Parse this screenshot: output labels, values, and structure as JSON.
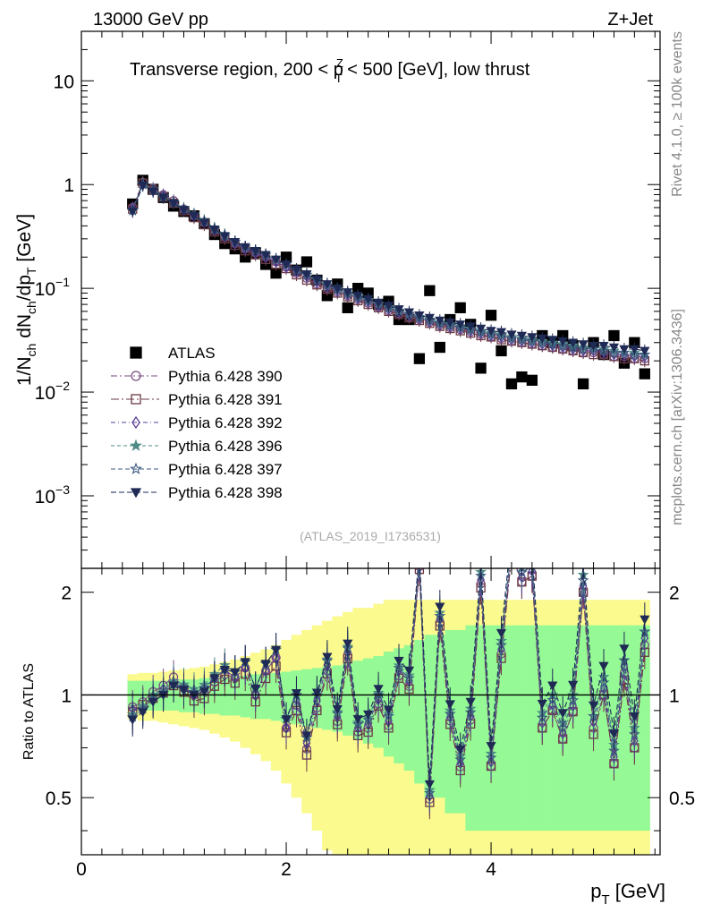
{
  "header": {
    "left": "13000 GeV pp",
    "right": "Z+Jet"
  },
  "side_labels": {
    "rivet": "Rivet 4.1.0, ≥ 100k events",
    "mcplots": "mcplots.cern.ch [arXiv:1306.3436]"
  },
  "chart_data": [
    {
      "type": "scatter",
      "panel": "main",
      "title": "Transverse region, 200 < p_T^Z < 500 [GeV], low thrust",
      "title_parts": {
        "a": "Transverse region, 200 < p",
        "sup": "Z",
        "sub": "T",
        "b": " < 500 [GeV], low thrust"
      },
      "ylabel": "1/N_ch dN_ch/dp_T [GeV]",
      "ylabel_parts": {
        "a": "1/N",
        "s1": "ch",
        "b": " dN",
        "s2": "ch",
        "c": "/dp",
        "s3": "T",
        "d": " [GeV]"
      },
      "xlim": [
        0,
        5.65
      ],
      "ylim": [
        0.0002,
        30
      ],
      "yscale": "log",
      "ytick_labels": [
        {
          "value": 0.001,
          "base": "10",
          "exp": "−3"
        },
        {
          "value": 0.01,
          "base": "10",
          "exp": "−2"
        },
        {
          "value": 0.1,
          "base": "10",
          "exp": "−1"
        },
        {
          "value": 1,
          "base": "1",
          "exp": ""
        },
        {
          "value": 10,
          "base": "10",
          "exp": ""
        }
      ],
      "watermark": "(ATLAS_2019_I1736531)",
      "legend_title": "ATLAS",
      "series": [
        {
          "name": "ATLAS",
          "marker": "filled-square",
          "color": "#000000",
          "x": [
            0.5,
            0.6,
            0.7,
            0.8,
            0.9,
            1.0,
            1.1,
            1.2,
            1.3,
            1.4,
            1.5,
            1.6,
            1.7,
            1.8,
            1.9,
            2.0,
            2.1,
            2.2,
            2.3,
            2.4,
            2.5,
            2.6,
            2.7,
            2.8,
            2.9,
            3.0,
            3.1,
            3.2,
            3.3,
            3.4,
            3.5,
            3.6,
            3.7,
            3.8,
            3.9,
            4.0,
            4.1,
            4.2,
            4.3,
            4.4,
            4.5,
            4.6,
            4.7,
            4.8,
            4.9,
            5.0,
            5.1,
            5.2,
            5.3,
            5.4,
            5.5
          ],
          "y": [
            0.65,
            1.1,
            0.9,
            0.75,
            0.62,
            0.55,
            0.5,
            0.42,
            0.33,
            0.27,
            0.24,
            0.2,
            0.22,
            0.17,
            0.14,
            0.2,
            0.15,
            0.18,
            0.12,
            0.085,
            0.11,
            0.065,
            0.1,
            0.09,
            0.07,
            0.075,
            0.05,
            0.05,
            0.021,
            0.095,
            0.027,
            0.05,
            0.065,
            0.045,
            0.017,
            0.055,
            0.025,
            0.012,
            0.014,
            0.013,
            0.035,
            0.03,
            0.035,
            0.028,
            0.012,
            0.03,
            0.023,
            0.035,
            0.019,
            0.03,
            0.015
          ]
        },
        {
          "name": "Pythia 6.428 390",
          "marker": "open-circle",
          "color": "#7B4B84",
          "dash": "7,3,2,3",
          "x": [
            0.5,
            0.6,
            0.7,
            0.8,
            0.9,
            1.0,
            1.1,
            1.2,
            1.3,
            1.4,
            1.5,
            1.6,
            1.7,
            1.8,
            1.9,
            2.0,
            2.1,
            2.2,
            2.3,
            2.4,
            2.5,
            2.6,
            2.7,
            2.8,
            2.9,
            3.0,
            3.1,
            3.2,
            3.3,
            3.4,
            3.5,
            3.6,
            3.7,
            3.8,
            3.9,
            4.0,
            4.1,
            4.2,
            4.3,
            4.4,
            4.5,
            4.6,
            4.7,
            4.8,
            4.9,
            5.0,
            5.1,
            5.2,
            5.3,
            5.4,
            5.5
          ],
          "y": [
            0.6,
            1.05,
            0.92,
            0.8,
            0.7,
            0.58,
            0.5,
            0.43,
            0.36,
            0.31,
            0.27,
            0.24,
            0.22,
            0.2,
            0.18,
            0.16,
            0.14,
            0.125,
            0.11,
            0.1,
            0.092,
            0.085,
            0.078,
            0.072,
            0.066,
            0.061,
            0.057,
            0.053,
            0.05,
            0.047,
            0.044,
            0.042,
            0.04,
            0.038,
            0.036,
            0.034,
            0.033,
            0.031,
            0.03,
            0.029,
            0.028,
            0.027,
            0.026,
            0.025,
            0.024,
            0.024,
            0.023,
            0.022,
            0.022,
            0.021,
            0.021
          ]
        },
        {
          "name": "Pythia 6.428 391",
          "marker": "open-square",
          "color": "#6B3A45",
          "dash": "9,3,2,3",
          "x": [
            0.5,
            0.6,
            0.7,
            0.8,
            0.9,
            1.0,
            1.1,
            1.2,
            1.3,
            1.4,
            1.5,
            1.6,
            1.7,
            1.8,
            1.9,
            2.0,
            2.1,
            2.2,
            2.3,
            2.4,
            2.5,
            2.6,
            2.7,
            2.8,
            2.9,
            3.0,
            3.1,
            3.2,
            3.3,
            3.4,
            3.5,
            3.6,
            3.7,
            3.8,
            3.9,
            4.0,
            4.1,
            4.2,
            4.3,
            4.4,
            4.5,
            4.6,
            4.7,
            4.8,
            4.9,
            5.0,
            5.1,
            5.2,
            5.3,
            5.4,
            5.5
          ],
          "y": [
            0.58,
            1.03,
            0.88,
            0.76,
            0.66,
            0.56,
            0.48,
            0.41,
            0.35,
            0.3,
            0.26,
            0.23,
            0.21,
            0.19,
            0.17,
            0.155,
            0.135,
            0.12,
            0.108,
            0.098,
            0.09,
            0.083,
            0.076,
            0.07,
            0.065,
            0.06,
            0.056,
            0.052,
            0.049,
            0.046,
            0.043,
            0.041,
            0.039,
            0.037,
            0.035,
            0.034,
            0.032,
            0.031,
            0.03,
            0.029,
            0.028,
            0.027,
            0.026,
            0.025,
            0.024,
            0.023,
            0.023,
            0.022,
            0.021,
            0.021,
            0.02
          ]
        },
        {
          "name": "Pythia 6.428 392",
          "marker": "open-diamond",
          "color": "#5A3C9A",
          "dash": "5,3,1,3",
          "x": [
            0.5,
            0.6,
            0.7,
            0.8,
            0.9,
            1.0,
            1.1,
            1.2,
            1.3,
            1.4,
            1.5,
            1.6,
            1.7,
            1.8,
            1.9,
            2.0,
            2.1,
            2.2,
            2.3,
            2.4,
            2.5,
            2.6,
            2.7,
            2.8,
            2.9,
            3.0,
            3.1,
            3.2,
            3.3,
            3.4,
            3.5,
            3.6,
            3.7,
            3.8,
            3.9,
            4.0,
            4.1,
            4.2,
            4.3,
            4.4,
            4.5,
            4.6,
            4.7,
            4.8,
            4.9,
            5.0,
            5.1,
            5.2,
            5.3,
            5.4,
            5.5
          ],
          "y": [
            0.59,
            1.0,
            0.87,
            0.78,
            0.67,
            0.57,
            0.5,
            0.44,
            0.37,
            0.32,
            0.27,
            0.24,
            0.22,
            0.2,
            0.18,
            0.16,
            0.145,
            0.13,
            0.115,
            0.104,
            0.095,
            0.087,
            0.08,
            0.074,
            0.068,
            0.063,
            0.059,
            0.055,
            0.051,
            0.048,
            0.045,
            0.043,
            0.041,
            0.039,
            0.037,
            0.035,
            0.034,
            0.032,
            0.031,
            0.03,
            0.029,
            0.028,
            0.027,
            0.026,
            0.025,
            0.025,
            0.024,
            0.023,
            0.023,
            0.022,
            0.022
          ]
        },
        {
          "name": "Pythia 6.428 396",
          "marker": "filled-star",
          "color": "#4E8A86",
          "dash": "4,3",
          "x": [
            0.5,
            0.6,
            0.7,
            0.8,
            0.9,
            1.0,
            1.1,
            1.2,
            1.3,
            1.4,
            1.5,
            1.6,
            1.7,
            1.8,
            1.9,
            2.0,
            2.1,
            2.2,
            2.3,
            2.4,
            2.5,
            2.6,
            2.7,
            2.8,
            2.9,
            3.0,
            3.1,
            3.2,
            3.3,
            3.4,
            3.5,
            3.6,
            3.7,
            3.8,
            3.9,
            4.0,
            4.1,
            4.2,
            4.3,
            4.4,
            4.5,
            4.6,
            4.7,
            4.8,
            4.9,
            5.0,
            5.1,
            5.2,
            5.3,
            5.4,
            5.5
          ],
          "y": [
            0.57,
            1.02,
            0.9,
            0.77,
            0.68,
            0.59,
            0.52,
            0.45,
            0.38,
            0.33,
            0.28,
            0.25,
            0.23,
            0.21,
            0.19,
            0.17,
            0.15,
            0.135,
            0.12,
            0.108,
            0.098,
            0.09,
            0.083,
            0.077,
            0.071,
            0.066,
            0.061,
            0.057,
            0.053,
            0.05,
            0.047,
            0.045,
            0.043,
            0.041,
            0.039,
            0.037,
            0.036,
            0.034,
            0.033,
            0.032,
            0.031,
            0.03,
            0.029,
            0.028,
            0.027,
            0.026,
            0.026,
            0.025,
            0.024,
            0.024,
            0.023
          ]
        },
        {
          "name": "Pythia 6.428 397",
          "marker": "open-star",
          "color": "#3D5A80",
          "dash": "5,3",
          "x": [
            0.5,
            0.6,
            0.7,
            0.8,
            0.9,
            1.0,
            1.1,
            1.2,
            1.3,
            1.4,
            1.5,
            1.6,
            1.7,
            1.8,
            1.9,
            2.0,
            2.1,
            2.2,
            2.3,
            2.4,
            2.5,
            2.6,
            2.7,
            2.8,
            2.9,
            3.0,
            3.1,
            3.2,
            3.3,
            3.4,
            3.5,
            3.6,
            3.7,
            3.8,
            3.9,
            4.0,
            4.1,
            4.2,
            4.3,
            4.4,
            4.5,
            4.6,
            4.7,
            4.8,
            4.9,
            5.0,
            5.1,
            5.2,
            5.3,
            5.4,
            5.5
          ],
          "y": [
            0.56,
            1.0,
            0.89,
            0.76,
            0.67,
            0.58,
            0.51,
            0.44,
            0.37,
            0.32,
            0.28,
            0.25,
            0.23,
            0.21,
            0.19,
            0.17,
            0.15,
            0.135,
            0.12,
            0.107,
            0.097,
            0.089,
            0.082,
            0.076,
            0.07,
            0.065,
            0.06,
            0.056,
            0.052,
            0.049,
            0.046,
            0.044,
            0.042,
            0.04,
            0.038,
            0.036,
            0.035,
            0.033,
            0.032,
            0.031,
            0.03,
            0.029,
            0.028,
            0.027,
            0.026,
            0.026,
            0.025,
            0.024,
            0.024,
            0.023,
            0.023
          ]
        },
        {
          "name": "Pythia 6.428 398",
          "marker": "filled-triangle-down",
          "color": "#1F2A55",
          "dash": "6,3",
          "x": [
            0.5,
            0.6,
            0.7,
            0.8,
            0.9,
            1.0,
            1.1,
            1.2,
            1.3,
            1.4,
            1.5,
            1.6,
            1.7,
            1.8,
            1.9,
            2.0,
            2.1,
            2.2,
            2.3,
            2.4,
            2.5,
            2.6,
            2.7,
            2.8,
            2.9,
            3.0,
            3.1,
            3.2,
            3.3,
            3.4,
            3.5,
            3.6,
            3.7,
            3.8,
            3.9,
            4.0,
            4.1,
            4.2,
            4.3,
            4.4,
            4.5,
            4.6,
            4.7,
            4.8,
            4.9,
            5.0,
            5.1,
            5.2,
            5.3,
            5.4,
            5.5
          ],
          "y": [
            0.55,
            0.98,
            0.86,
            0.75,
            0.66,
            0.57,
            0.5,
            0.43,
            0.37,
            0.32,
            0.28,
            0.25,
            0.23,
            0.21,
            0.19,
            0.17,
            0.152,
            0.137,
            0.122,
            0.11,
            0.1,
            0.092,
            0.085,
            0.079,
            0.073,
            0.068,
            0.063,
            0.059,
            0.055,
            0.052,
            0.049,
            0.047,
            0.045,
            0.043,
            0.041,
            0.039,
            0.038,
            0.036,
            0.035,
            0.034,
            0.033,
            0.032,
            0.031,
            0.03,
            0.029,
            0.028,
            0.028,
            0.027,
            0.026,
            0.026,
            0.025
          ]
        }
      ]
    },
    {
      "type": "scatter",
      "panel": "ratio",
      "ylabel": "Ratio to ATLAS",
      "xlabel": "p_T [GeV]",
      "xlabel_parts": {
        "a": "p",
        "sub": "T",
        "b": " [GeV]"
      },
      "xlim": [
        0,
        5.65
      ],
      "ylim": [
        0.34,
        2.35
      ],
      "yscale": "log",
      "xticks": [
        0,
        2,
        4
      ],
      "yticks": [
        0.5,
        1,
        2
      ],
      "reference_line": 1,
      "uncertainty_bands": {
        "green_halfwidth": [
          0.1,
          0.1,
          0.1,
          0.1,
          0.1,
          0.11,
          0.11,
          0.12,
          0.12,
          0.13,
          0.13,
          0.14,
          0.15,
          0.15,
          0.16,
          0.17,
          0.18,
          0.19,
          0.2,
          0.21,
          0.22,
          0.24,
          0.26,
          0.28,
          0.3,
          0.34,
          0.37,
          0.4,
          0.45,
          0.5,
          0.5,
          0.55,
          0.55,
          0.6,
          0.6,
          0.6,
          0.6,
          0.6,
          0.6,
          0.6,
          0.6,
          0.6,
          0.6,
          0.6,
          0.6,
          0.6,
          0.6,
          0.6,
          0.6,
          0.6,
          0.6
        ],
        "yellow_halfwidth": [
          0.15,
          0.16,
          0.16,
          0.17,
          0.18,
          0.19,
          0.2,
          0.21,
          0.23,
          0.25,
          0.27,
          0.3,
          0.33,
          0.36,
          0.4,
          0.45,
          0.5,
          0.55,
          0.6,
          0.65,
          0.7,
          0.75,
          0.8,
          0.8,
          0.85,
          0.9,
          0.9,
          0.9,
          0.9,
          0.9,
          0.9,
          0.9,
          0.9,
          0.9,
          0.9,
          0.9,
          0.9,
          0.9,
          0.9,
          0.9,
          0.9,
          0.9,
          0.9,
          0.9,
          0.9,
          0.9,
          0.9,
          0.9,
          0.9,
          0.9,
          0.9
        ]
      }
    }
  ]
}
